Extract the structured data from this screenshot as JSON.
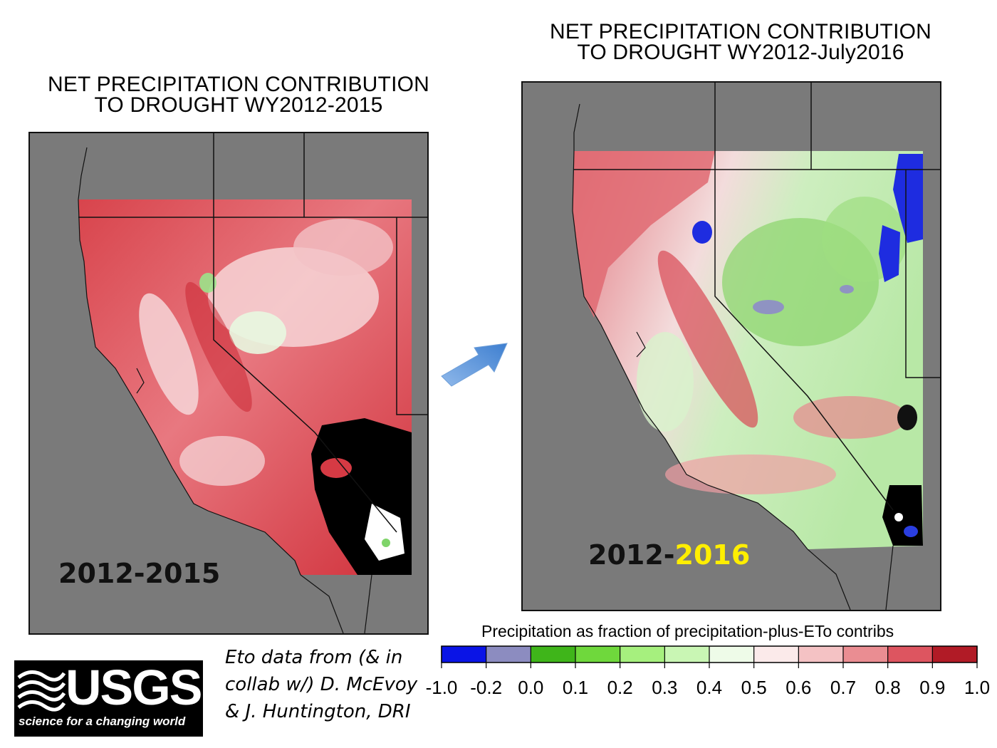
{
  "left_panel": {
    "title_line1": "NET PRECIPITATION CONTRIBUTION",
    "title_line2": "TO DROUGHT WY2012-2015",
    "year_label": "2012-2015"
  },
  "right_panel": {
    "title_line1": "NET PRECIPITATION CONTRIBUTION",
    "title_line2": "TO DROUGHT WY2012-July2016",
    "year_label_prefix": "2012-",
    "year_label_highlight": "2016"
  },
  "legend": {
    "title": "Precipitation as fraction of precipitation-plus-ETo contribs",
    "ticks": [
      "-1.0",
      "-0.2",
      "0.0",
      "0.1",
      "0.2",
      "0.3",
      "0.4",
      "0.5",
      "0.6",
      "0.7",
      "0.8",
      "0.9",
      "1.0"
    ],
    "segment_colors": [
      "#0a14e6",
      "#8c8cc0",
      "#3fb51a",
      "#6fd83c",
      "#a6f07e",
      "#c9f6b4",
      "#eefbe8",
      "#fbeaea",
      "#f4c2c4",
      "#ea8d92",
      "#dd5560",
      "#b11b26"
    ]
  },
  "credit": {
    "line1": "Eto data from (& in",
    "line2": "collab w/) D. McEvoy",
    "line3": "& J. Huntington, DRI"
  },
  "logo": {
    "name": "USGS",
    "tagline": "science for a changing world"
  },
  "colors": {
    "land_gray": "#7a7a7a",
    "drought_red": "#d63a44",
    "highlight_yellow": "#ffee00",
    "arrow_blue": "#4f8fd8"
  }
}
